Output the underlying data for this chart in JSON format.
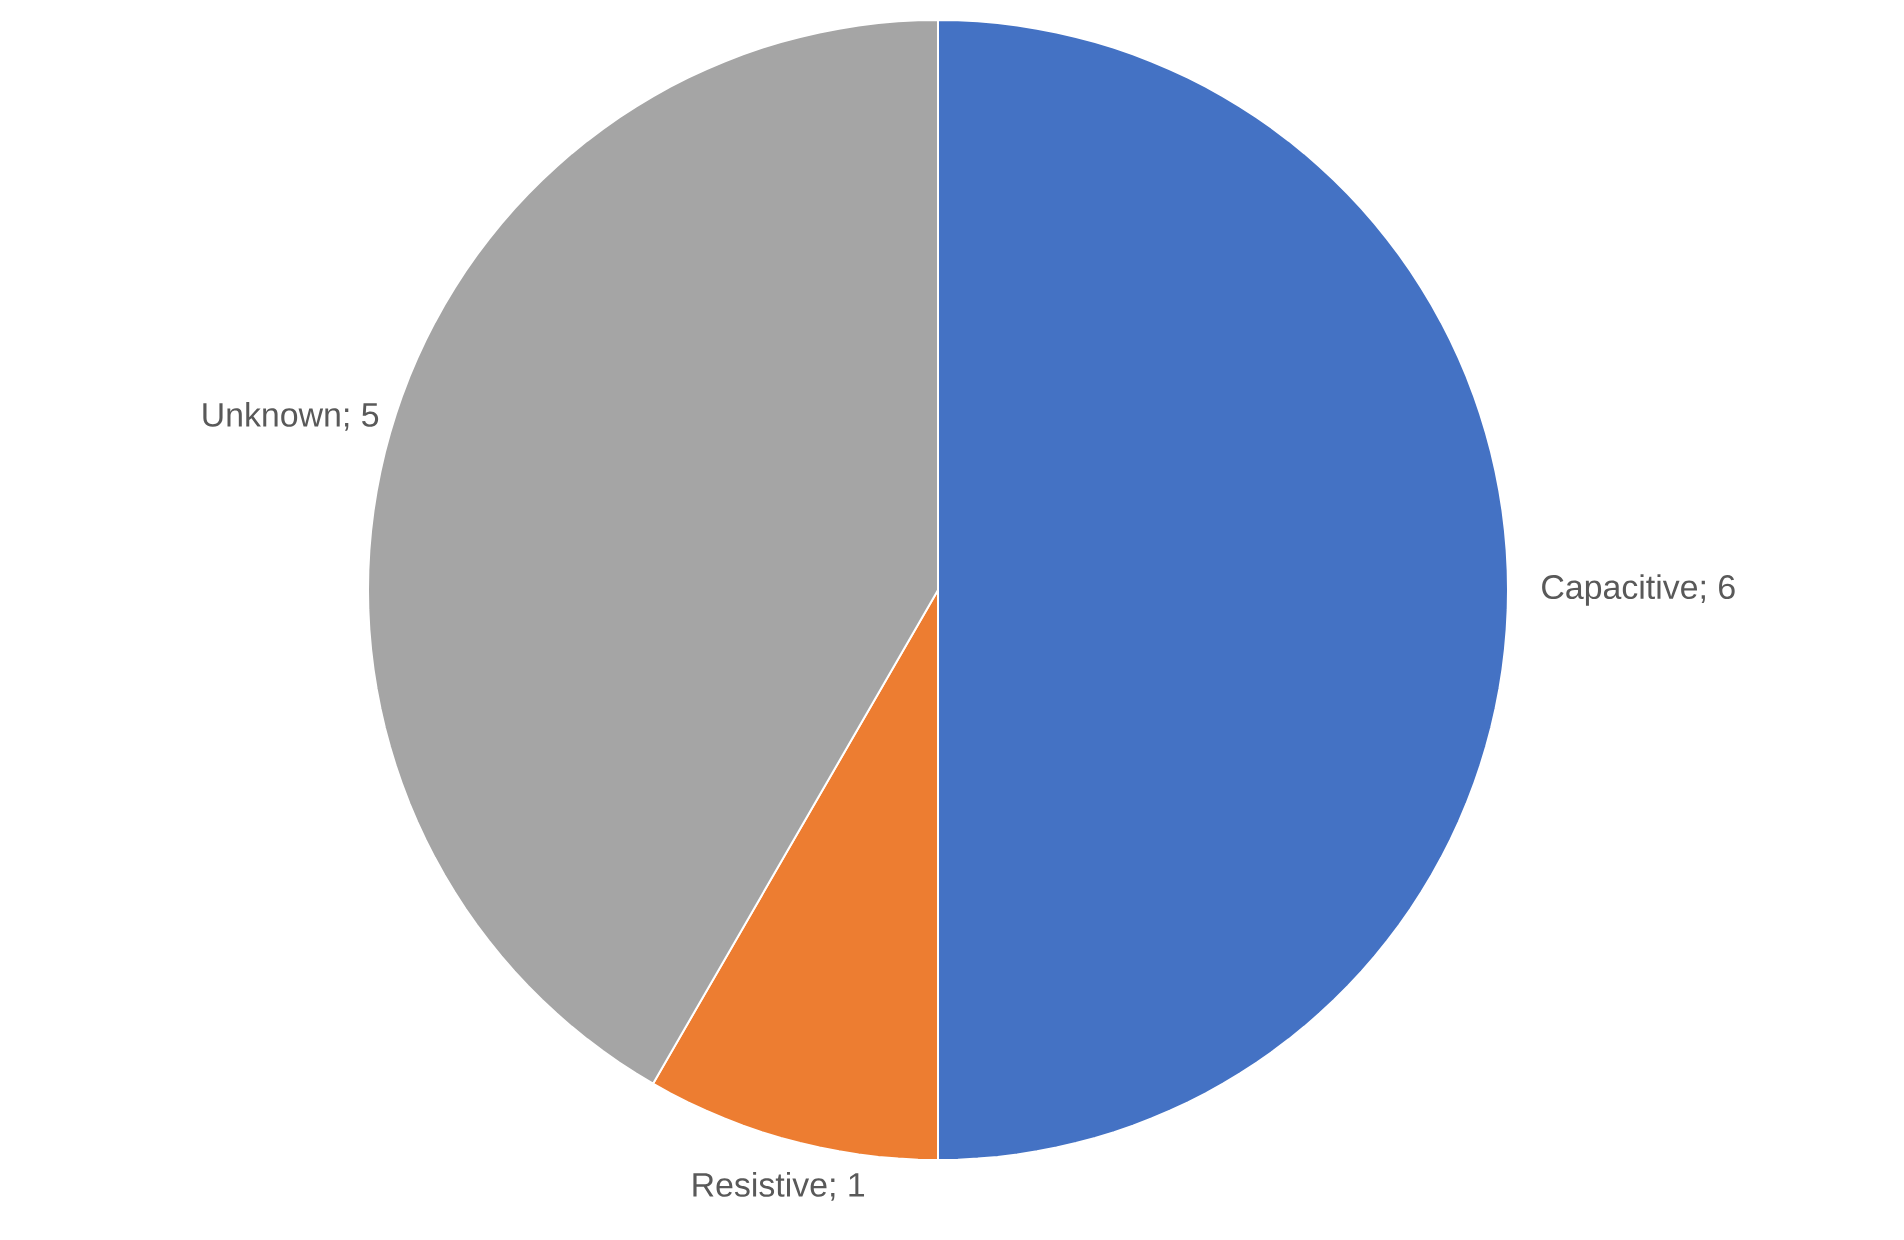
{
  "chart_data": {
    "type": "pie",
    "categories": [
      "Capacitive",
      "Resistive",
      "Unknown"
    ],
    "values": [
      6,
      1,
      5
    ],
    "colors": [
      "#4472c4",
      "#ed7d31",
      "#a5a5a5"
    ],
    "value_labels": [
      "; 6",
      "; 1",
      "; 5"
    ]
  }
}
